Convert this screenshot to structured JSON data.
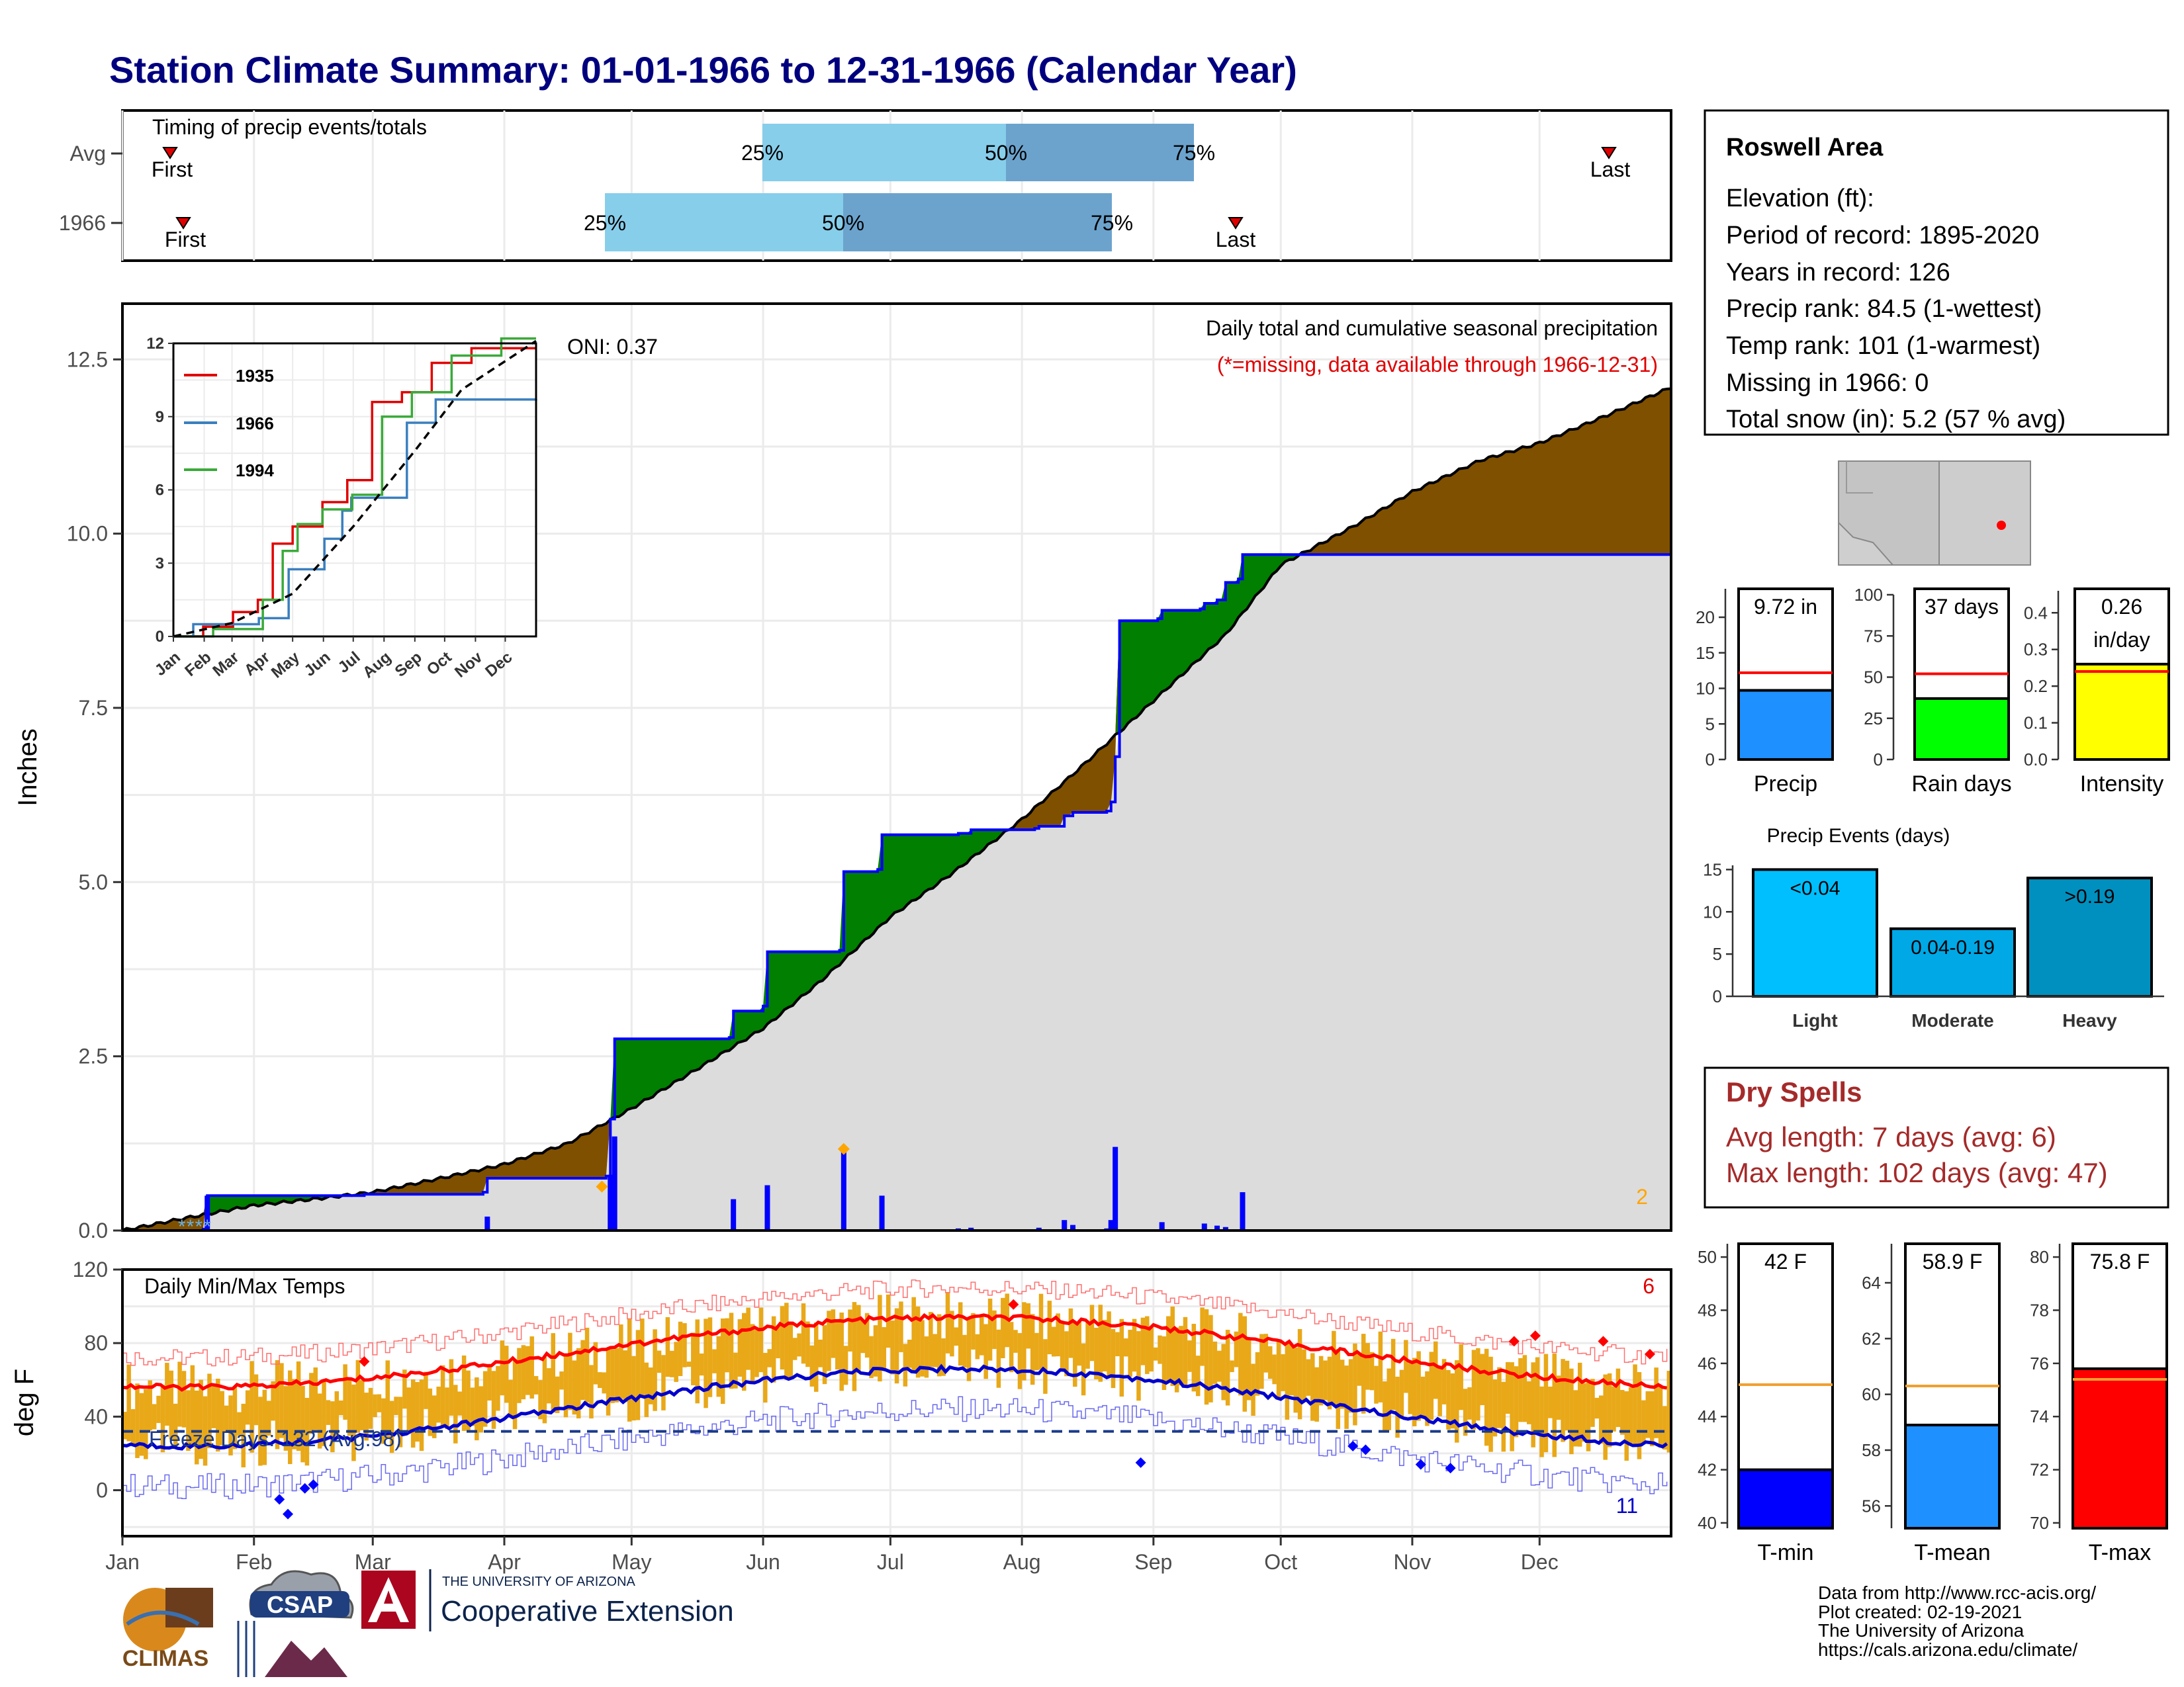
{
  "title": "Station Climate Summary: 01-01-1966 to 12-31-1966 (Calendar Year)",
  "colors": {
    "title": "#00007f",
    "above_normal": "#007f00",
    "below_normal": "#7f5000",
    "normal_fill": "#dcdcdc",
    "observed_line": "#0000ff",
    "temp_bars": "#e8a818",
    "tmax_avg": "#ff0000",
    "tmin_avg": "#0000cc",
    "precip_bar": "#1e90ff",
    "raindays_bar": "#00ff00",
    "intensity_bar": "#ffff00",
    "light_bar": "#00bfff",
    "moderate_bar": "#00a8e6",
    "heavy_bar": "#0090c0",
    "dry_spells": "#a52a2a",
    "tmin_bar": "#0000ff",
    "tmean_bar": "#1e90ff",
    "tmax_bar": "#ff0000"
  },
  "timing_panel": {
    "title": "Timing of precip events/totals",
    "rows": [
      {
        "label": "Avg",
        "first": "First",
        "last": "Last",
        "p25": "25%",
        "p50": "50%",
        "p75": "75%"
      },
      {
        "label": "1966",
        "first": "First",
        "last": "Last",
        "p25": "25%",
        "p50": "50%",
        "p75": "75%"
      }
    ]
  },
  "precip_panel": {
    "ylabel": "Inches",
    "caption": "Daily total and cumulative seasonal precipitation",
    "missing_note": "(*=missing, data available through 1966-12-31)",
    "oni": "ONI: 0.37",
    "corner_count": "2",
    "yticks": [
      "0.0",
      "2.5",
      "5.0",
      "7.5",
      "10.0",
      "12.5"
    ]
  },
  "inset": {
    "yticks": [
      "0",
      "3",
      "6",
      "9",
      "12"
    ],
    "months": [
      "Jan",
      "Feb",
      "Mar",
      "Apr",
      "May",
      "Jun",
      "Jul",
      "Aug",
      "Sep",
      "Oct",
      "Nov",
      "Dec"
    ],
    "legend": [
      "1935",
      "1966",
      "1994"
    ]
  },
  "temp_panel": {
    "ylabel": "deg F",
    "title": "Daily Min/Max Temps",
    "freeze_label": "Freeze Days: 132 (Avg:98)",
    "hot_count": "6",
    "cold_count": "11",
    "yticks": [
      "0",
      "40",
      "80",
      "120"
    ]
  },
  "months": [
    "Jan",
    "Feb",
    "Mar",
    "Apr",
    "May",
    "Jun",
    "Jul",
    "Aug",
    "Sep",
    "Oct",
    "Nov",
    "Dec"
  ],
  "info_box": {
    "station": "Roswell Area",
    "lines": [
      "Elevation (ft):",
      "Period of record: 1895-2020",
      "Years in record: 126",
      "Precip rank: 84.5 (1-wettest)",
      "Temp rank: 101 (1-warmest)",
      "Missing in 1966: 0",
      "Total snow (in): 5.2 (57 % avg)"
    ]
  },
  "dry_spells": {
    "title": "Dry Spells",
    "avg": "Avg length: 7 days (avg: 6)",
    "max": "Max length: 102 days (avg: 47)"
  },
  "precip_events_title": "Precip Events (days)",
  "footer": {
    "lines": [
      "Data from http://www.rcc-acis.org/",
      "Plot created: 02-19-2021",
      "The University of Arizona",
      "https://cals.arizona.edu/climate/"
    ],
    "climas": "CLIMAS",
    "csap": "CSAP",
    "ua_small": "THE UNIVERSITY OF ARIZONA",
    "ua_big": "Cooperative Extension"
  },
  "chart_data": [
    {
      "type": "area",
      "name": "cumulative-precip",
      "ylim": [
        0,
        13.3
      ],
      "xlim_days": [
        0,
        365
      ],
      "normal_cumulative": [
        [
          0,
          0
        ],
        [
          15,
          0.18
        ],
        [
          31,
          0.36
        ],
        [
          45,
          0.45
        ],
        [
          59,
          0.55
        ],
        [
          75,
          0.75
        ],
        [
          90,
          0.95
        ],
        [
          105,
          1.25
        ],
        [
          120,
          1.75
        ],
        [
          135,
          2.3
        ],
        [
          151,
          2.9
        ],
        [
          165,
          3.6
        ],
        [
          181,
          4.5
        ],
        [
          195,
          5.1
        ],
        [
          212,
          5.9
        ],
        [
          225,
          6.6
        ],
        [
          243,
          7.6
        ],
        [
          260,
          8.55
        ],
        [
          273,
          9.55
        ],
        [
          290,
          10.1
        ],
        [
          304,
          10.6
        ],
        [
          320,
          11.05
        ],
        [
          334,
          11.3
        ],
        [
          350,
          11.7
        ],
        [
          365,
          12.1
        ]
      ],
      "observed_1966": [
        [
          0,
          0
        ],
        [
          19,
          0.02
        ],
        [
          20,
          0.5
        ],
        [
          57,
          0.52
        ],
        [
          85,
          0.55
        ],
        [
          86,
          0.75
        ],
        [
          114,
          0.78
        ],
        [
          115,
          1.6
        ],
        [
          116,
          2.75
        ],
        [
          143,
          2.77
        ],
        [
          144,
          3.15
        ],
        [
          151,
          3.22
        ],
        [
          152,
          4.0
        ],
        [
          169,
          4.02
        ],
        [
          170,
          5.15
        ],
        [
          178,
          5.18
        ],
        [
          179,
          5.68
        ],
        [
          197,
          5.7
        ],
        [
          200,
          5.75
        ],
        [
          215,
          5.77
        ],
        [
          216,
          5.8
        ],
        [
          222,
          5.95
        ],
        [
          224,
          6.0
        ],
        [
          232,
          6.02
        ],
        [
          233,
          6.15
        ],
        [
          234,
          6.8
        ],
        [
          235,
          8.75
        ],
        [
          244,
          8.78
        ],
        [
          245,
          8.9
        ],
        [
          254,
          8.92
        ],
        [
          255,
          9.0
        ],
        [
          258,
          9.05
        ],
        [
          260,
          9.3
        ],
        [
          263,
          9.35
        ],
        [
          264,
          9.7
        ],
        [
          365,
          9.72
        ]
      ],
      "daily_bars": [
        [
          20,
          0.5
        ],
        [
          86,
          0.2
        ],
        [
          115,
          0.8
        ],
        [
          116,
          1.35
        ],
        [
          144,
          0.45
        ],
        [
          152,
          0.65
        ],
        [
          170,
          1.15
        ],
        [
          179,
          0.5
        ],
        [
          197,
          0.03
        ],
        [
          200,
          0.04
        ],
        [
          216,
          0.04
        ],
        [
          222,
          0.15
        ],
        [
          224,
          0.08
        ],
        [
          232,
          0.03
        ],
        [
          233,
          0.15
        ],
        [
          234,
          1.2
        ],
        [
          245,
          0.12
        ],
        [
          255,
          0.1
        ],
        [
          258,
          0.07
        ],
        [
          260,
          0.05
        ],
        [
          264,
          0.55
        ]
      ],
      "snow_days": [
        14,
        16,
        18,
        20
      ],
      "record_markers": [
        [
          113,
          0.63
        ],
        [
          170,
          1.17
        ]
      ]
    },
    {
      "type": "line",
      "name": "inset-cumulative",
      "ylim": [
        0,
        12
      ],
      "series": [
        {
          "name": "1935",
          "values": [
            [
              0,
              0
            ],
            [
              30,
              0.4
            ],
            [
              60,
              1.0
            ],
            [
              85,
              1.5
            ],
            [
              100,
              3.8
            ],
            [
              120,
              4.5
            ],
            [
              150,
              5.5
            ],
            [
              175,
              6.4
            ],
            [
              200,
              9.6
            ],
            [
              230,
              10.0
            ],
            [
              260,
              11.2
            ],
            [
              300,
              11.8
            ],
            [
              365,
              11.8
            ]
          ]
        },
        {
          "name": "1966",
          "values": [
            [
              0,
              0
            ],
            [
              20,
              0.5
            ],
            [
              86,
              0.75
            ],
            [
              116,
              2.75
            ],
            [
              152,
              4.0
            ],
            [
              170,
              5.15
            ],
            [
              179,
              5.68
            ],
            [
              235,
              8.75
            ],
            [
              264,
              9.7
            ],
            [
              365,
              9.72
            ]
          ]
        },
        {
          "name": "1994",
          "values": [
            [
              0,
              0
            ],
            [
              40,
              0.3
            ],
            [
              90,
              1.5
            ],
            [
              110,
              3.5
            ],
            [
              125,
              4.6
            ],
            [
              150,
              5.2
            ],
            [
              180,
              5.8
            ],
            [
              210,
              9.0
            ],
            [
              240,
              10.0
            ],
            [
              280,
              11.5
            ],
            [
              330,
              12.2
            ],
            [
              365,
              12.2
            ]
          ]
        },
        {
          "name": "avg",
          "values": [
            [
              0,
              0
            ],
            [
              59,
              0.55
            ],
            [
              120,
              1.75
            ],
            [
              181,
              4.5
            ],
            [
              243,
              7.6
            ],
            [
              290,
              10.1
            ],
            [
              365,
              12.1
            ]
          ]
        }
      ]
    },
    {
      "type": "line",
      "name": "daily-temps",
      "ylim": [
        -25,
        120
      ],
      "tmax_avg_range": [
        56,
        94
      ],
      "tmin_avg_range": [
        24,
        66
      ],
      "freeze_line": 32,
      "record_high_days": [
        [
          57,
          70
        ],
        [
          210,
          101
        ],
        [
          328,
          81
        ],
        [
          333,
          84
        ],
        [
          349,
          81
        ],
        [
          360,
          74
        ]
      ],
      "record_low_days": [
        [
          37,
          -5
        ],
        [
          39,
          -13
        ],
        [
          43,
          1
        ],
        [
          45,
          3
        ],
        [
          240,
          15
        ],
        [
          290,
          24
        ],
        [
          293,
          22
        ],
        [
          306,
          14
        ],
        [
          313,
          12
        ]
      ]
    },
    {
      "type": "bar",
      "name": "precip-total",
      "categories": [
        "Precip"
      ],
      "values": [
        9.72
      ],
      "normal": 12.2,
      "ylim": [
        0,
        24
      ],
      "yticks": [
        "0",
        "5",
        "10",
        "15",
        "20"
      ],
      "label": "9.72 in",
      "xlabel": "Precip"
    },
    {
      "type": "bar",
      "name": "rain-days",
      "categories": [
        "Rain days"
      ],
      "values": [
        37
      ],
      "normal": 52,
      "ylim": [
        0,
        100
      ],
      "yticks": [
        "0",
        "25",
        "50",
        "75",
        "100"
      ],
      "label": "37 days",
      "xlabel": "Rain days"
    },
    {
      "type": "bar",
      "name": "intensity",
      "categories": [
        "Intensity"
      ],
      "values": [
        0.26
      ],
      "normal": 0.24,
      "ylim": [
        0,
        0.46
      ],
      "yticks": [
        "0.0",
        "0.1",
        "0.2",
        "0.3",
        "0.4"
      ],
      "label": "0.26",
      "label2": "in/day",
      "xlabel": "Intensity"
    },
    {
      "type": "bar",
      "name": "precip-events",
      "categories": [
        "Light",
        "Moderate",
        "Heavy"
      ],
      "values": [
        15,
        8,
        14
      ],
      "labels": [
        "<0.04",
        "0.04-0.19",
        ">0.19"
      ],
      "ylim": [
        0,
        15.5
      ],
      "yticks": [
        "0",
        "5",
        "10",
        "15"
      ]
    },
    {
      "type": "bar",
      "name": "t-min",
      "categories": [
        "T-min"
      ],
      "values": [
        42
      ],
      "normal": 45.2,
      "ylim": [
        39.8,
        50.5
      ],
      "yticks": [
        "40",
        "42",
        "44",
        "46",
        "48",
        "50"
      ],
      "label": "42 F",
      "xlabel": "T-min"
    },
    {
      "type": "bar",
      "name": "t-mean",
      "categories": [
        "T-mean"
      ],
      "values": [
        58.9
      ],
      "normal": 60.3,
      "ylim": [
        55.2,
        65.4
      ],
      "yticks": [
        "56",
        "58",
        "60",
        "62",
        "64"
      ],
      "label": "58.9 F",
      "xlabel": "T-mean"
    },
    {
      "type": "bar",
      "name": "t-max",
      "categories": [
        "T-max"
      ],
      "values": [
        75.8
      ],
      "normal": 75.4,
      "ylim": [
        69.8,
        80.5
      ],
      "yticks": [
        "70",
        "72",
        "74",
        "76",
        "78",
        "80"
      ],
      "label": "75.8 F",
      "xlabel": "T-max"
    }
  ]
}
